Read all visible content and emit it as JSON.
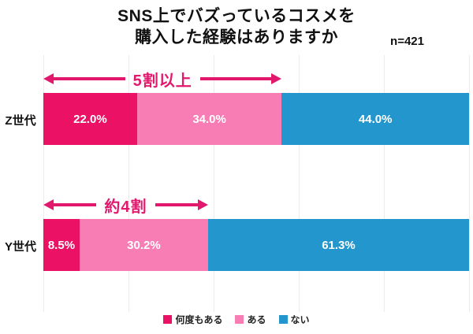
{
  "title": {
    "line1": "SNS上でバズっているコスメを",
    "line2": "購入した経験はありますか"
  },
  "n_label": "n=421",
  "colors": {
    "many_times": "#EB1164",
    "have": "#F97DB5",
    "none": "#2496CE",
    "annotation": "#E2186D",
    "gridline": "#ECECEC",
    "bar_label_text": "#FFFFFF"
  },
  "chart_data": {
    "type": "bar",
    "orientation": "horizontal-stacked",
    "title": "SNS上でバズっているコスメを購入した経験はありますか",
    "sample_size_label": "n=421",
    "categories": [
      "Z世代",
      "Y世代"
    ],
    "series": [
      {
        "name": "何度もある",
        "color": "#EB1164",
        "values": [
          22.0,
          8.5
        ],
        "labels": [
          "22.0%",
          "8.5%"
        ]
      },
      {
        "name": "ある",
        "color": "#F97DB5",
        "values": [
          34.0,
          30.2
        ],
        "labels": [
          "34.0%",
          "30.2%"
        ]
      },
      {
        "name": "ない",
        "color": "#2496CE",
        "values": [
          44.0,
          61.3
        ],
        "labels": [
          "44.0%",
          "61.3%"
        ]
      }
    ],
    "annotations": [
      {
        "category": "Z世代",
        "text": "5割以上",
        "span_percent": 56.0
      },
      {
        "category": "Y世代",
        "text": "約4割",
        "span_percent": 38.7
      }
    ],
    "x_range": [
      0,
      100
    ],
    "gridlines_percent": [
      0,
      20,
      40,
      60,
      80,
      100
    ],
    "grid": true,
    "legend": [
      "何度もある",
      "ある",
      "ない"
    ],
    "legend_position": "bottom"
  }
}
